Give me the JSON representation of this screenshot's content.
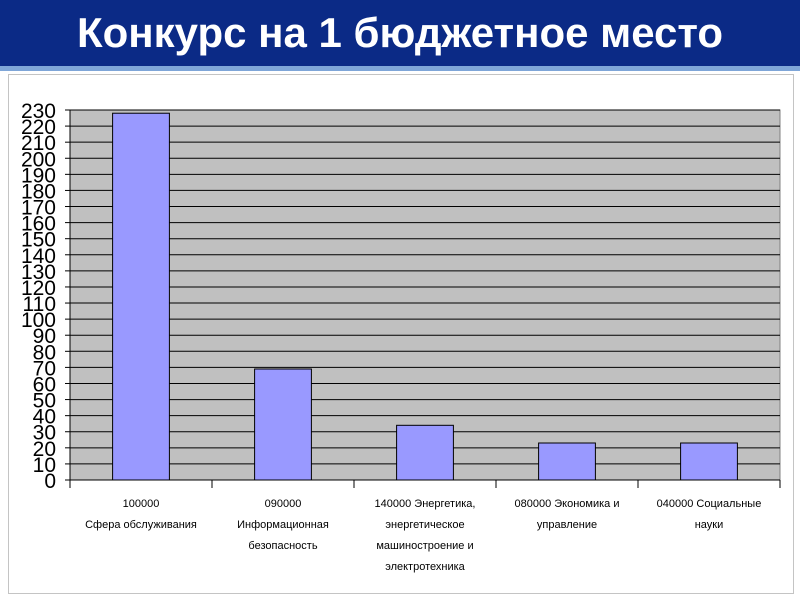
{
  "title": "Конкурс на 1 бюджетное место",
  "colors": {
    "title_bar": "#0b2a86",
    "plot_background": "#c0c0c0",
    "bar_fill": "#9999ff",
    "bar_stroke": "#000000",
    "grid": "#000000"
  },
  "chart_data": {
    "type": "bar",
    "categories": [
      "100000\nСфера обслуживания",
      "090000\nИнформационная\nбезопасность",
      "140000 Энергетика,\nэнергетическое\nмашиностроение и\nэлектротехника",
      "080000 Экономика и\nуправление",
      "040000 Социальные\nнауки"
    ],
    "values": [
      228,
      69,
      34,
      23,
      23
    ],
    "ylim": [
      0,
      230
    ],
    "ytick_step": 10,
    "yticks": [
      "0",
      "10",
      "20",
      "30",
      "40",
      "50",
      "60",
      "70",
      "80",
      "90",
      "100",
      "110",
      "120",
      "130",
      "140",
      "150",
      "160",
      "170",
      "180",
      "190",
      "200",
      "210",
      "220",
      "230"
    ],
    "grid": true,
    "legend": "none"
  }
}
